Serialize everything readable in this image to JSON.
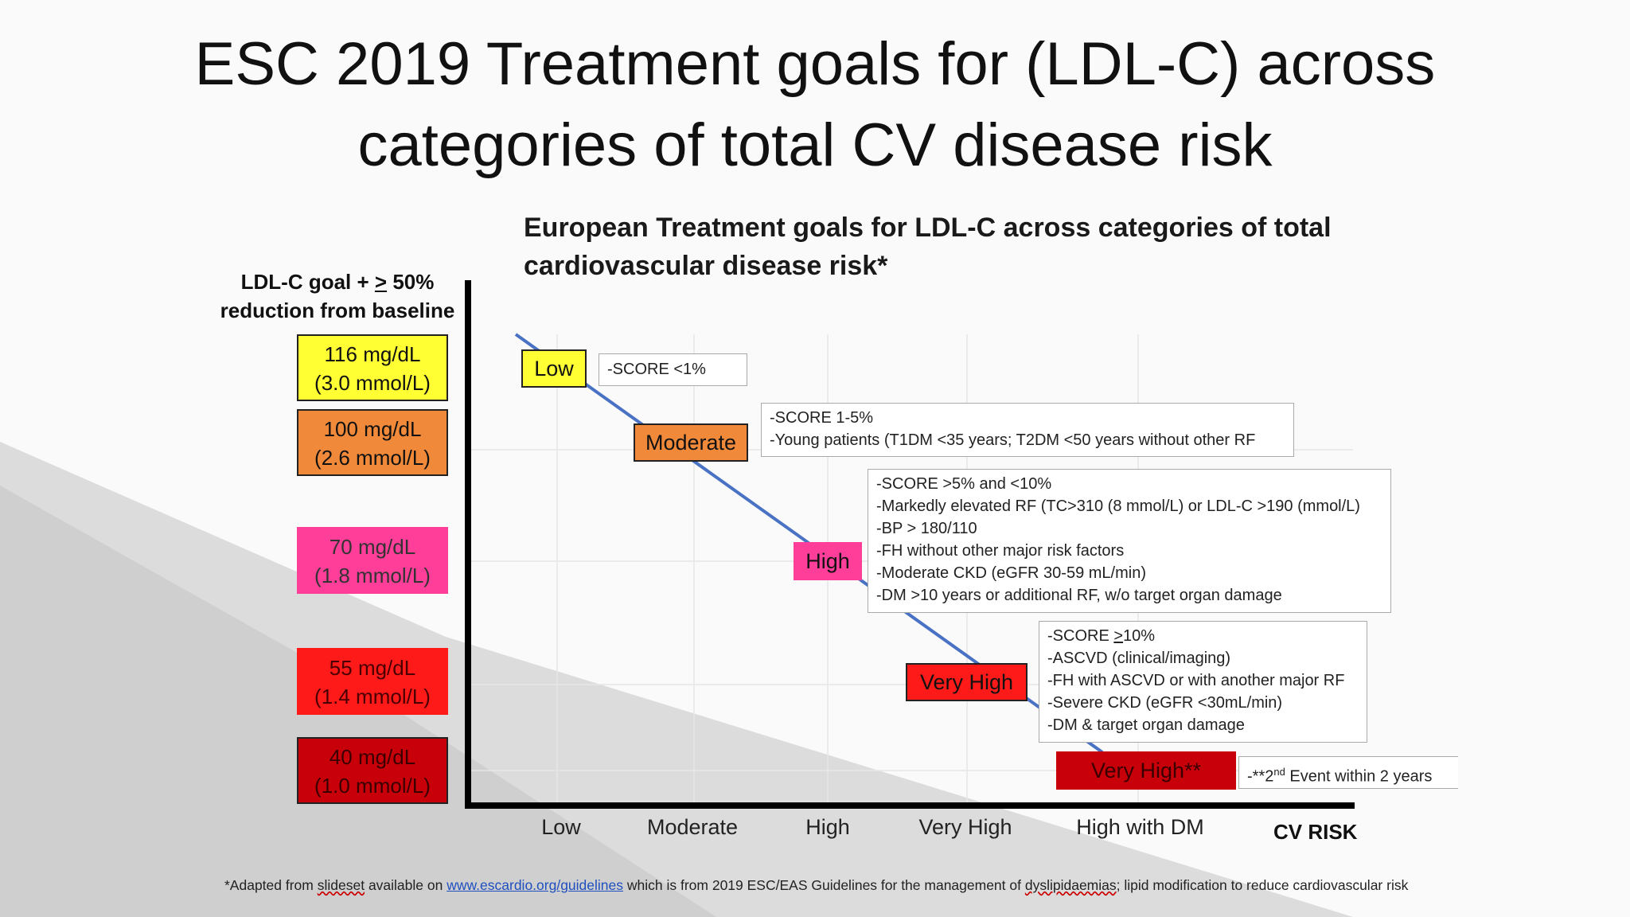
{
  "slide": {
    "title_line1": "ESC 2019 Treatment goals for (LDL-C) across",
    "title_line2": "categories of total CV disease risk"
  },
  "chart": {
    "subtitle_line1": "European Treatment goals for LDL-C across categories of total",
    "subtitle_line2": "cardiovascular disease risk*",
    "y_label_line1_pre": "LDL-C goal + ",
    "y_label_line1_ge": ">",
    "y_label_line1_post": " 50%",
    "y_label_line2": "reduction from baseline",
    "x_axis_title": "CV RISK",
    "x_ticks": [
      "Low",
      "Moderate",
      "High",
      "Very High",
      "High with DM"
    ]
  },
  "goals": [
    {
      "mgdl": "116 mg/dL",
      "mmol": "(3.0 mmol/L)",
      "color": "#ffff33"
    },
    {
      "mgdl": "100 mg/dL",
      "mmol": "(2.6 mmol/L)",
      "color": "#f08a3a"
    },
    {
      "mgdl": "70 mg/dL",
      "mmol": "(1.8 mmol/L)",
      "color": "#ff3e9a"
    },
    {
      "mgdl": "55 mg/dL",
      "mmol": "(1.4 mmol/L)",
      "color": "#ff1a1a"
    },
    {
      "mgdl": "40 mg/dL",
      "mmol": "(1.0 mmol/L)",
      "color": "#c8000a"
    }
  ],
  "risk_categories": [
    {
      "label": "Low",
      "color": "#ffff33"
    },
    {
      "label": "Moderate",
      "color": "#f08a3a"
    },
    {
      "label": "High",
      "color": "#ff3e9a"
    },
    {
      "label": "Very High",
      "color": "#ff1a1a"
    },
    {
      "label": "Very High**",
      "color": "#c8000a"
    }
  ],
  "descriptions": {
    "low": [
      "-SCORE <1%"
    ],
    "moderate": [
      "-SCORE 1-5%",
      "-Young patients (T1DM <35 years; T2DM <50 years without other RF"
    ],
    "high": [
      "-SCORE >5% and <10%",
      "-Markedly elevated RF (TC>310 (8 mmol/L) or LDL-C >190 (mmol/L)",
      "-BP > 180/110",
      "-FH without other major risk factors",
      "-Moderate CKD (eGFR 30-59 mL/min)",
      "-DM >10 years or additional RF, w/o target organ damage"
    ],
    "very_high_first_pre": "-SCORE ",
    "very_high_first_ge": ">",
    "very_high_first_post": "10%",
    "very_high_rest": [
      "-ASCVD (clinical/imaging)",
      "-FH with ASCVD or with another major RF",
      "-Severe CKD (eGFR <30mL/min)",
      "-DM & target organ damage"
    ],
    "very_high_2_pre": "-**2",
    "very_high_2_sup": "nd",
    "very_high_2_post": " Event within 2 years"
  },
  "footnote": {
    "pre": "*Adapted from ",
    "slideset": "slideset",
    "mid1": " available on ",
    "link": "www.escardio.org/guidelines",
    "mid2": " which is from 2019 ESC/EAS Guidelines for the management of ",
    "dys": "dyslipidaemias",
    "post": "; lipid modification to reduce cardiovascular risk"
  },
  "colors": {
    "trend_line": "#4a72c4",
    "axis": "#000000"
  }
}
